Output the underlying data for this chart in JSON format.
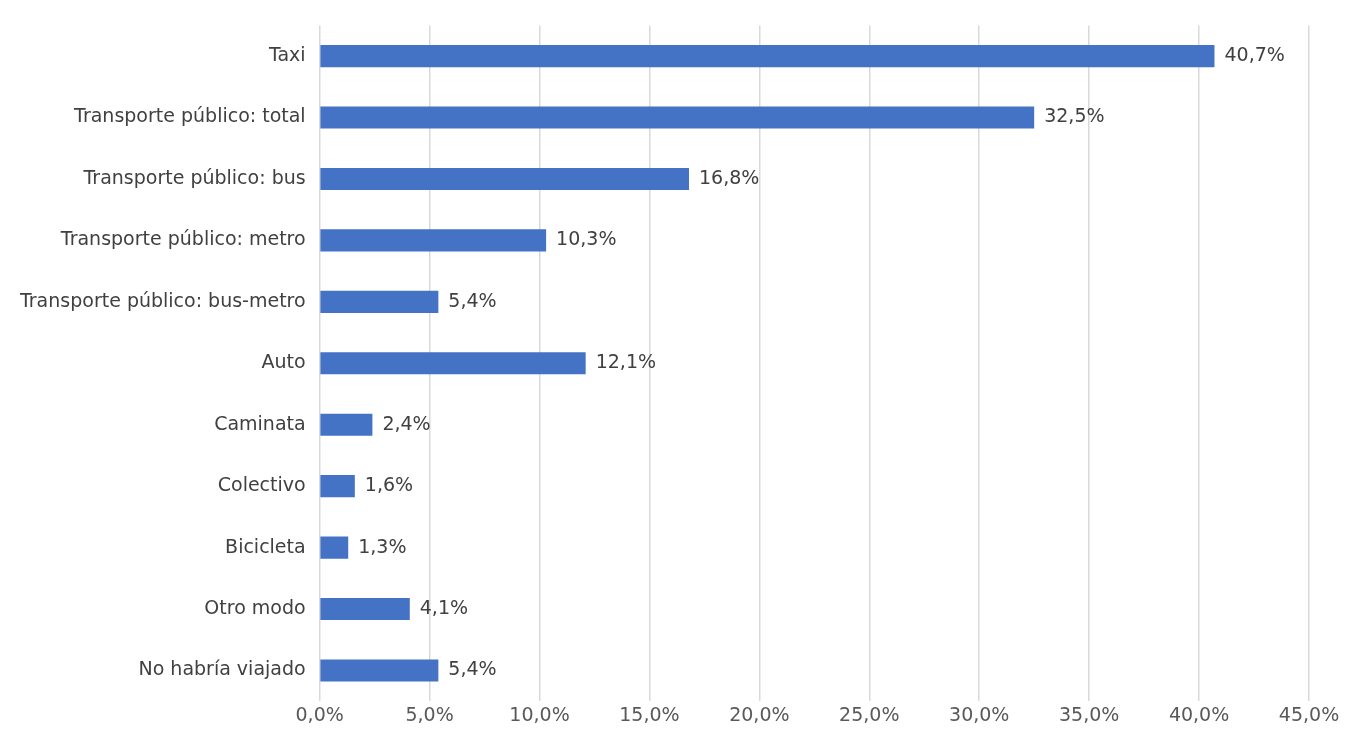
{
  "chart_data": {
    "type": "bar",
    "orientation": "horizontal",
    "categories": [
      "Taxi",
      "Transporte público: total",
      "Transporte público: bus",
      "Transporte público: metro",
      "Transporte público: bus-metro",
      "Auto",
      "Caminata",
      "Colectivo",
      "Bicicleta",
      "Otro modo",
      "No habría viajado"
    ],
    "values": [
      40.7,
      32.5,
      16.8,
      10.3,
      5.4,
      12.1,
      2.4,
      1.6,
      1.3,
      4.1,
      5.4
    ],
    "value_labels": [
      "40,7%",
      "32,5%",
      "16,8%",
      "10,3%",
      "5,4%",
      "12,1%",
      "2,4%",
      "1,6%",
      "1,3%",
      "4,1%",
      "5,4%"
    ],
    "color": "#4472c4",
    "xlim": [
      0,
      45
    ],
    "xticks": [
      {
        "value": 0,
        "label": "0,0%"
      },
      {
        "value": 5,
        "label": "5,0%"
      },
      {
        "value": 10,
        "label": "10,0%"
      },
      {
        "value": 15,
        "label": "15,0%"
      },
      {
        "value": 20,
        "label": "20,0%"
      },
      {
        "value": 25,
        "label": "25,0%"
      },
      {
        "value": 30,
        "label": "30,0%"
      },
      {
        "value": 35,
        "label": "35,0%"
      },
      {
        "value": 40,
        "label": "40,0%"
      },
      {
        "value": 45,
        "label": "45,0%"
      }
    ],
    "grid": "x",
    "legend": false
  }
}
